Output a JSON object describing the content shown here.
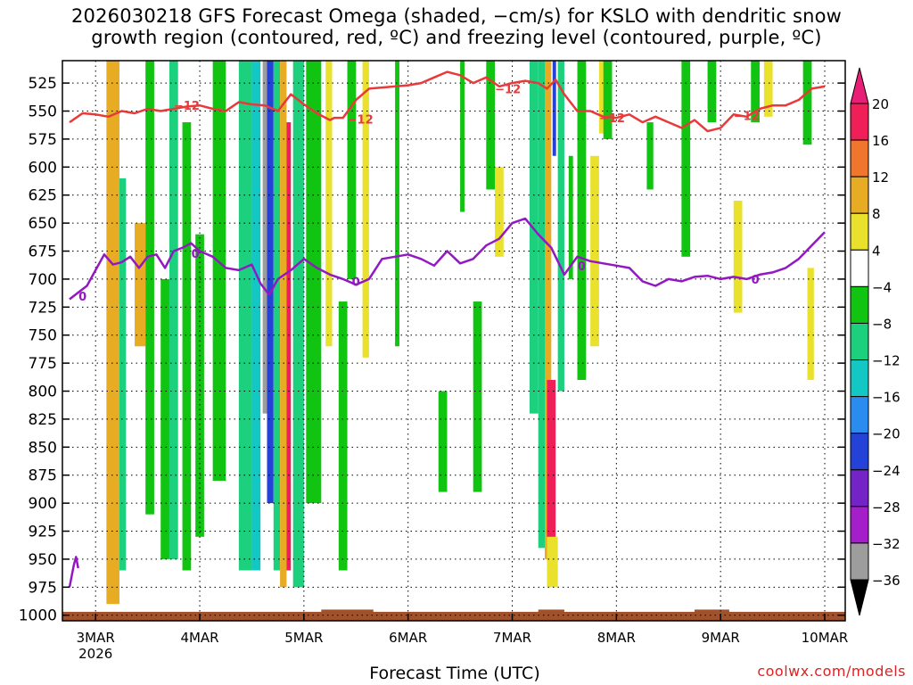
{
  "title": {
    "line1": "2026030218 GFS Forecast Omega (shaded, −cm/s) for KSLO with dendritic snow",
    "line2": "growth region (contoured, red, ºC) and freezing level (contoured, purple, ºC)"
  },
  "xlabel": "Forecast Time (UTC)",
  "credit": "coolwx.com/models",
  "chart_data": {
    "type": "heatmap",
    "title": "2026030218 GFS Forecast Omega (shaded, −cm/s) for KSLO with dendritic snow growth region (contoured, red, ºC) and freezing level (contoured, purple, ºC)",
    "xlabel": "Forecast Time (UTC)",
    "ylabel": "",
    "x_start": "2026-03-02T18Z",
    "x_range_hours": [
      0,
      174
    ],
    "x_ticks": [
      {
        "label": "3MAR",
        "hour": 6,
        "sub": "2026"
      },
      {
        "label": "4MAR",
        "hour": 30
      },
      {
        "label": "5MAR",
        "hour": 54
      },
      {
        "label": "6MAR",
        "hour": 78
      },
      {
        "label": "7MAR",
        "hour": 102
      },
      {
        "label": "8MAR",
        "hour": 126
      },
      {
        "label": "9MAR",
        "hour": 150
      },
      {
        "label": "10MAR",
        "hour": 174
      }
    ],
    "y_ticks": [
      525,
      550,
      575,
      600,
      625,
      650,
      675,
      700,
      725,
      750,
      775,
      800,
      825,
      850,
      875,
      900,
      925,
      950,
      975,
      1000
    ],
    "y_range": [
      505,
      1005
    ],
    "y_reversed": true,
    "grid": true,
    "colorbar": {
      "levels": [
        20,
        16,
        12,
        8,
        4,
        -4,
        -8,
        -12,
        -16,
        -20,
        -24,
        -28,
        -32,
        -36
      ],
      "labels": [
        "20",
        "16",
        "12",
        "8",
        "4",
        "−4",
        "−8",
        "−12",
        "−16",
        "−20",
        "−24",
        "−28",
        "−32",
        "−36"
      ],
      "colors": [
        "#ef1f58",
        "#f0762d",
        "#e8ab24",
        "#e9e12c",
        "#ffffff",
        "#12c412",
        "#1dd07e",
        "#13c7c4",
        "#2b8cf0",
        "#2442d8",
        "#7423c7",
        "#a41ec9",
        "#9d9d9d"
      ],
      "top_color": "#e91e77",
      "bottom_color": "#000000"
    },
    "shaded_regions": [
      {
        "hours": [
          9.5,
          10.5
        ],
        "p": [
          505,
          975
        ],
        "value": 18
      },
      {
        "hours": [
          8.5,
          11.5
        ],
        "p": [
          505,
          990
        ],
        "value": 10
      },
      {
        "hours": [
          11.5,
          13
        ],
        "p": [
          610,
          960
        ],
        "value": -10
      },
      {
        "hours": [
          15,
          17.5
        ],
        "p": [
          650,
          760
        ],
        "value": 10
      },
      {
        "hours": [
          17.5,
          19.5
        ],
        "p": [
          505,
          910
        ],
        "value": -7
      },
      {
        "hours": [
          21,
          23
        ],
        "p": [
          700,
          950
        ],
        "value": -6
      },
      {
        "hours": [
          23,
          25
        ],
        "p": [
          505,
          950
        ],
        "value": -9
      },
      {
        "hours": [
          26,
          28
        ],
        "p": [
          560,
          960
        ],
        "value": -7
      },
      {
        "hours": [
          29,
          31
        ],
        "p": [
          660,
          930
        ],
        "value": -8
      },
      {
        "hours": [
          33,
          36
        ],
        "p": [
          505,
          880
        ],
        "value": -7
      },
      {
        "hours": [
          39,
          42
        ],
        "p": [
          505,
          960
        ],
        "value": -9
      },
      {
        "hours": [
          42,
          44
        ],
        "p": [
          505,
          960
        ],
        "value": -15
      },
      {
        "hours": [
          44.5,
          45.5
        ],
        "p": [
          505,
          820
        ],
        "value": -36
      },
      {
        "hours": [
          45.5,
          47
        ],
        "p": [
          505,
          900
        ],
        "value": -22
      },
      {
        "hours": [
          47,
          48.5
        ],
        "p": [
          505,
          960
        ],
        "value": -10
      },
      {
        "hours": [
          48.5,
          50
        ],
        "p": [
          505,
          975
        ],
        "value": 9
      },
      {
        "hours": [
          50,
          51
        ],
        "p": [
          560,
          960
        ],
        "value": 18
      },
      {
        "hours": [
          51.5,
          54
        ],
        "p": [
          505,
          975
        ],
        "value": -10
      },
      {
        "hours": [
          54.5,
          58
        ],
        "p": [
          505,
          900
        ],
        "value": -7
      },
      {
        "hours": [
          59,
          60.5
        ],
        "p": [
          505,
          760
        ],
        "value": 6
      },
      {
        "hours": [
          62,
          64
        ],
        "p": [
          720,
          960
        ],
        "value": -7
      },
      {
        "hours": [
          64,
          66
        ],
        "p": [
          505,
          700
        ],
        "value": -7
      },
      {
        "hours": [
          67.5,
          69
        ],
        "p": [
          505,
          770
        ],
        "value": 6
      },
      {
        "hours": [
          75,
          76
        ],
        "p": [
          505,
          760
        ],
        "value": -6
      },
      {
        "hours": [
          85,
          87
        ],
        "p": [
          800,
          890
        ],
        "value": -7
      },
      {
        "hours": [
          90,
          91
        ],
        "p": [
          505,
          640
        ],
        "value": -7
      },
      {
        "hours": [
          93,
          95
        ],
        "p": [
          720,
          890
        ],
        "value": -8
      },
      {
        "hours": [
          96,
          98
        ],
        "p": [
          505,
          620
        ],
        "value": -7
      },
      {
        "hours": [
          98,
          100
        ],
        "p": [
          600,
          680
        ],
        "value": 6
      },
      {
        "hours": [
          106,
          108
        ],
        "p": [
          505,
          820
        ],
        "value": -9
      },
      {
        "hours": [
          108,
          109.5
        ],
        "p": [
          505,
          940
        ],
        "value": -12
      },
      {
        "hours": [
          109.5,
          111
        ],
        "p": [
          505,
          950
        ],
        "value": 10
      },
      {
        "hours": [
          110,
          112
        ],
        "p": [
          790,
          950
        ],
        "value": 18
      },
      {
        "hours": [
          110,
          112.5
        ],
        "p": [
          930,
          975
        ],
        "value": 6
      },
      {
        "hours": [
          111.3,
          112.1
        ],
        "p": [
          505,
          590
        ],
        "value": -22
      },
      {
        "hours": [
          112.5,
          114
        ],
        "p": [
          505,
          800
        ],
        "value": -10
      },
      {
        "hours": [
          115,
          116
        ],
        "p": [
          590,
          700
        ],
        "value": -7
      },
      {
        "hours": [
          117,
          119
        ],
        "p": [
          505,
          790
        ],
        "value": -7
      },
      {
        "hours": [
          120,
          122
        ],
        "p": [
          590,
          760
        ],
        "value": 6
      },
      {
        "hours": [
          122,
          124
        ],
        "p": [
          505,
          570
        ],
        "value": 6
      },
      {
        "hours": [
          123,
          125
        ],
        "p": [
          505,
          575
        ],
        "value": -7
      },
      {
        "hours": [
          133,
          134.5
        ],
        "p": [
          560,
          620
        ],
        "value": -8
      },
      {
        "hours": [
          141,
          143
        ],
        "p": [
          505,
          680
        ],
        "value": -7
      },
      {
        "hours": [
          147,
          149
        ],
        "p": [
          505,
          560
        ],
        "value": -7
      },
      {
        "hours": [
          153,
          155
        ],
        "p": [
          630,
          730
        ],
        "value": 6
      },
      {
        "hours": [
          157,
          159
        ],
        "p": [
          505,
          560
        ],
        "value": -8
      },
      {
        "hours": [
          160,
          162
        ],
        "p": [
          505,
          555
        ],
        "value": 6
      },
      {
        "hours": [
          169,
          171
        ],
        "p": [
          505,
          580
        ],
        "value": -8
      },
      {
        "hours": [
          170,
          171.5
        ],
        "p": [
          690,
          790
        ],
        "value": 6
      }
    ],
    "series": [
      {
        "name": "-12",
        "color": "#e83a3a",
        "label": "−12",
        "x": [
          0,
          3,
          6,
          9,
          12,
          15,
          18,
          21,
          24,
          27,
          30,
          33,
          36,
          39,
          42,
          45,
          48,
          51,
          54,
          57,
          60,
          61,
          63,
          66,
          69,
          72,
          75,
          78,
          81,
          84,
          87,
          90,
          93,
          96,
          99,
          102,
          105,
          108,
          110,
          112,
          114,
          117,
          120,
          123,
          126,
          129,
          132,
          135,
          138,
          141,
          144,
          147,
          150,
          153,
          156,
          159,
          162,
          165,
          168,
          171,
          174
        ],
        "y": [
          560,
          552,
          553,
          555,
          550,
          552,
          548,
          550,
          548,
          546,
          545,
          548,
          550,
          542,
          544,
          545,
          550,
          535,
          544,
          552,
          558,
          556,
          556,
          540,
          530,
          529,
          528,
          527,
          525,
          520,
          515,
          518,
          525,
          520,
          528,
          525,
          523,
          525,
          530,
          522,
          535,
          550,
          550,
          555,
          556,
          553,
          560,
          555,
          560,
          565,
          558,
          568,
          565,
          553,
          555,
          548,
          545,
          545,
          540,
          530,
          528
        ]
      },
      {
        "name": "0",
        "color": "#9318c2",
        "label": "0",
        "x": [
          0,
          2,
          4,
          6,
          8,
          10,
          12,
          14,
          16,
          18,
          20,
          22,
          24,
          26,
          28,
          30,
          33,
          36,
          39,
          42,
          44,
          46,
          48,
          51,
          54,
          57,
          60,
          63,
          66,
          69,
          72,
          75,
          78,
          81,
          84,
          87,
          90,
          93,
          96,
          99,
          102,
          105,
          108,
          111,
          114,
          117,
          120,
          123,
          126,
          129,
          132,
          135,
          138,
          141,
          144,
          147,
          150,
          153,
          156,
          159,
          162,
          165,
          168,
          171,
          174
        ],
        "y": [
          718,
          712,
          706,
          692,
          678,
          687,
          685,
          680,
          690,
          680,
          678,
          690,
          675,
          672,
          668,
          675,
          680,
          690,
          692,
          687,
          704,
          714,
          700,
          692,
          682,
          690,
          696,
          700,
          705,
          700,
          682,
          680,
          678,
          682,
          688,
          675,
          686,
          682,
          670,
          664,
          650,
          646,
          660,
          672,
          696,
          680,
          684,
          686,
          688,
          690,
          702,
          706,
          700,
          702,
          698,
          697,
          700,
          698,
          700,
          696,
          694,
          690,
          682,
          670,
          658
        ]
      },
      {
        "name": "0",
        "color": "#9318c2",
        "x": [
          0,
          0.5,
          1,
          1.5,
          2
        ],
        "y": [
          975,
          965,
          955,
          948,
          958
        ]
      }
    ],
    "contour_labels": [
      {
        "text": "−12",
        "hour": 27,
        "p": 545,
        "color": "#e83a3a"
      },
      {
        "text": "−12",
        "hour": 67,
        "p": 557,
        "color": "#e83a3a"
      },
      {
        "text": "−12",
        "hour": 101,
        "p": 530,
        "color": "#e83a3a"
      },
      {
        "text": "−12",
        "hour": 125,
        "p": 556,
        "color": "#e83a3a"
      },
      {
        "text": "−12",
        "hour": 156,
        "p": 554,
        "color": "#e83a3a"
      },
      {
        "text": "0",
        "hour": 3,
        "p": 715,
        "color": "#9318c2"
      },
      {
        "text": "0",
        "hour": 29,
        "p": 677,
        "color": "#9318c2"
      },
      {
        "text": "0",
        "hour": 66,
        "p": 702,
        "color": "#9318c2"
      },
      {
        "text": "0",
        "hour": 118,
        "p": 688,
        "color": "#9318c2"
      },
      {
        "text": "0",
        "hour": 158,
        "p": 700,
        "color": "#9318c2"
      }
    ],
    "terrain": {
      "color": "#a0522d",
      "p_top": 997,
      "bumps": [
        {
          "hours": [
            58,
            70
          ],
          "p_top": 995
        },
        {
          "hours": [
            108,
            114
          ],
          "p_top": 995
        },
        {
          "hours": [
            144,
            152
          ],
          "p_top": 995
        }
      ]
    }
  }
}
